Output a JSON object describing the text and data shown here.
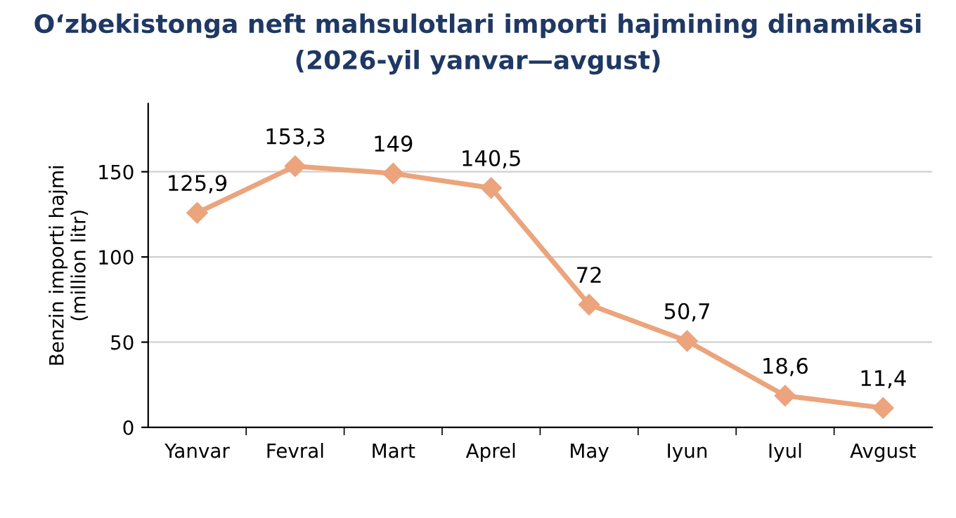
{
  "chart_data": {
    "type": "line",
    "title": "O‘zbekistonga neft mahsulotlari importi hajmining dinamikasi",
    "subtitle": "(2026-yil yanvar—avgust)",
    "ylabel": "Benzin importi hajmi\n(million litr)",
    "categories": [
      "Yanvar",
      "Fevral",
      "Mart",
      "Aprel",
      "May",
      "Iyun",
      "Iyul",
      "Avgust"
    ],
    "series": [
      {
        "color": "#eba47c",
        "values": [
          125.9,
          153.3,
          149,
          140.5,
          72,
          50.7,
          18.6,
          11.4
        ]
      }
    ],
    "value_labels": [
      "125,9",
      "153,3",
      "149",
      "140,5",
      "72",
      "50,7",
      "18,6",
      "11,4"
    ],
    "ylim": [
      0,
      190
    ],
    "yticks": [
      0,
      50,
      100,
      150
    ],
    "grid": "y",
    "marker": "diamond",
    "line_style": "solid",
    "legend": false
  }
}
